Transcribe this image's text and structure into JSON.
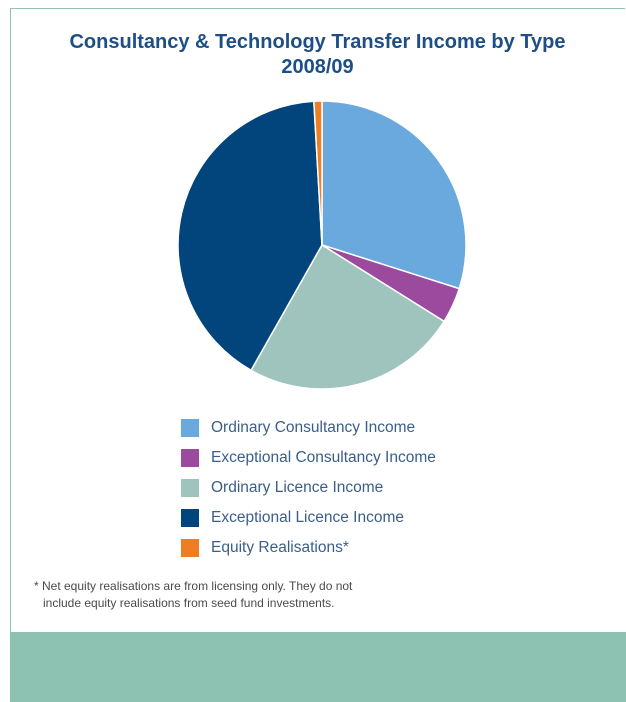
{
  "chart_data": {
    "type": "pie",
    "title": [
      "Consultancy & Technology Transfer Income by Type",
      "2008/09"
    ],
    "slices": [
      {
        "label": "Ordinary Consultancy Income",
        "value": 29.9,
        "color": "#6aa9dd"
      },
      {
        "label": "Exceptional Consultancy Income",
        "value": 4.0,
        "color": "#9b4a9e"
      },
      {
        "label": "Ordinary Licence Income",
        "value": 24.3,
        "color": "#9ec4bd"
      },
      {
        "label": "Exceptional Licence Income",
        "value": 40.9,
        "color": "#02457c"
      },
      {
        "label": "Equity Realisations*",
        "value": 0.9,
        "color": "#ef7d22"
      }
    ],
    "start_angle_deg": 0,
    "direction": "clockwise",
    "legend_position": "bottom"
  },
  "footnote": {
    "line1": "* Net equity realisations are from licensing only. They do not",
    "line2": "include equity realisations from seed fund investments."
  },
  "colors": {
    "title": "#1d4f86",
    "legend_text": "#3a5e8a",
    "band": "#8dc2b3",
    "frame": "#8fc3b4"
  }
}
